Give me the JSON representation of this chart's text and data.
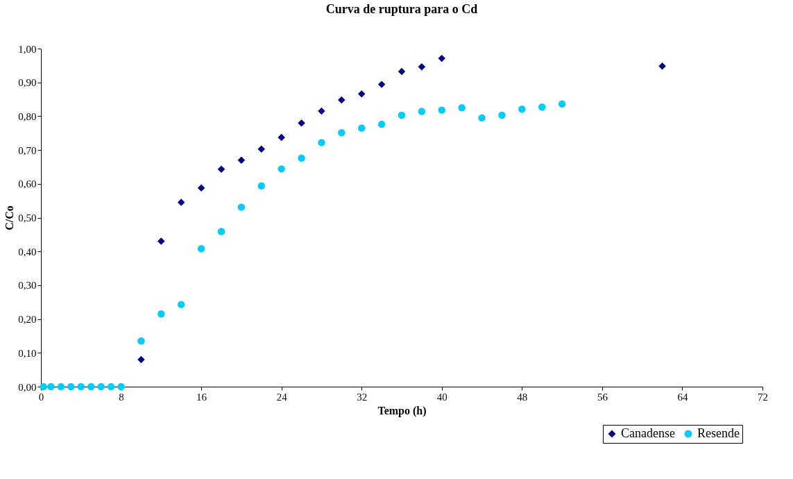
{
  "chart_data": {
    "type": "scatter",
    "title": "Curva de ruptura para o Cd",
    "xlabel": "Tempo (h)",
    "ylabel": "C/Co",
    "xlim": [
      0,
      72
    ],
    "xticks": [
      0,
      8,
      16,
      24,
      32,
      40,
      48,
      56,
      64,
      72
    ],
    "ylim": [
      0,
      1
    ],
    "yticks": [
      {
        "value": 0,
        "label": "0,00"
      },
      {
        "value": 0.1,
        "label": "0,10"
      },
      {
        "value": 0.2,
        "label": "0,20"
      },
      {
        "value": 0.3,
        "label": "0,30"
      },
      {
        "value": 0.4,
        "label": "0,40"
      },
      {
        "value": 0.5,
        "label": "0,50"
      },
      {
        "value": 0.6,
        "label": "0,60"
      },
      {
        "value": 0.7,
        "label": "0,70"
      },
      {
        "value": 0.8,
        "label": "0,80"
      },
      {
        "value": 0.9,
        "label": "0,90"
      },
      {
        "value": 1.0,
        "label": "1,00"
      }
    ],
    "grid": false,
    "legend": "bottom right",
    "series": [
      {
        "name": "Canadense",
        "color": "#000080",
        "marker": "diamond",
        "x": [
          10,
          12,
          14,
          16,
          18,
          20,
          22,
          24,
          26,
          28,
          30,
          32,
          34,
          36,
          38,
          40,
          62
        ],
        "values": [
          0.08,
          0.43,
          0.545,
          0.588,
          0.643,
          0.67,
          0.703,
          0.737,
          0.78,
          0.815,
          0.848,
          0.866,
          0.894,
          0.932,
          0.946,
          0.971,
          0.948
        ]
      },
      {
        "name": "Resende",
        "color": "#00ccff",
        "marker": "circle",
        "x": [
          0.25,
          1,
          2,
          3,
          4,
          5,
          6,
          7,
          8,
          10,
          12,
          14,
          16,
          18,
          20,
          22,
          24,
          26,
          28,
          30,
          32,
          34,
          36,
          38,
          40,
          42,
          44,
          46,
          48,
          50,
          52
        ],
        "values": [
          0,
          0,
          0,
          0,
          0,
          0,
          0,
          0,
          0,
          0.135,
          0.215,
          0.243,
          0.408,
          0.459,
          0.531,
          0.594,
          0.644,
          0.676,
          0.722,
          0.751,
          0.765,
          0.776,
          0.803,
          0.814,
          0.818,
          0.825,
          0.795,
          0.803,
          0.821,
          0.827,
          0.836
        ]
      }
    ]
  }
}
